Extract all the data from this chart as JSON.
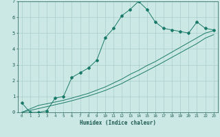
{
  "xlabel": "Humidex (Indice chaleur)",
  "x_main": [
    0,
    1,
    2,
    3,
    4,
    5,
    6,
    7,
    8,
    9,
    10,
    11,
    12,
    13,
    14,
    15,
    16,
    17,
    18,
    19,
    20,
    21,
    22,
    23
  ],
  "y_main": [
    0.6,
    0.0,
    0.0,
    0.1,
    0.9,
    1.0,
    2.2,
    2.5,
    2.8,
    3.3,
    4.7,
    5.3,
    6.1,
    6.5,
    7.0,
    6.5,
    5.7,
    5.3,
    5.2,
    5.1,
    5.0,
    5.7,
    5.3,
    5.2
  ],
  "y_line1": [
    0.0,
    0.22,
    0.44,
    0.54,
    0.65,
    0.76,
    0.9,
    1.05,
    1.2,
    1.4,
    1.6,
    1.85,
    2.1,
    2.4,
    2.65,
    2.95,
    3.2,
    3.5,
    3.8,
    4.1,
    4.4,
    4.7,
    5.0,
    5.15
  ],
  "y_line2": [
    0.0,
    0.12,
    0.24,
    0.36,
    0.48,
    0.6,
    0.73,
    0.88,
    1.03,
    1.2,
    1.38,
    1.6,
    1.82,
    2.1,
    2.35,
    2.62,
    2.9,
    3.18,
    3.47,
    3.76,
    4.05,
    4.34,
    4.68,
    4.9
  ],
  "line_color": "#1a7a6a",
  "bg_color": "#cce8e4",
  "grid_color": "#aacfcb",
  "tick_color": "#1a5a50",
  "ylim": [
    0,
    7
  ],
  "xlim": [
    -0.5,
    23.5
  ],
  "yticks": [
    0,
    1,
    2,
    3,
    4,
    5,
    6,
    7
  ],
  "xticks": [
    0,
    1,
    2,
    3,
    4,
    5,
    6,
    7,
    8,
    9,
    10,
    11,
    12,
    13,
    14,
    15,
    16,
    17,
    18,
    19,
    20,
    21,
    22,
    23
  ]
}
